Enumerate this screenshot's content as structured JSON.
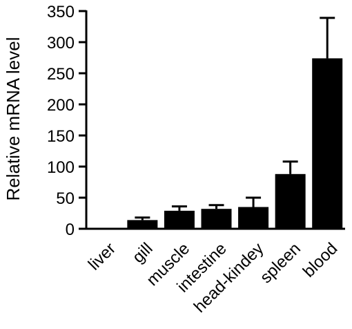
{
  "chart_data": {
    "type": "bar",
    "title": "",
    "xlabel": "",
    "ylabel": "Relative mRNA level",
    "categories": [
      "liver",
      "gill",
      "muscle",
      "intestine",
      "head-kindey",
      "spleen",
      "blood"
    ],
    "values": [
      1,
      14,
      29,
      32,
      35,
      88,
      274
    ],
    "error_upper": [
      0,
      4,
      7,
      6,
      15,
      20,
      65
    ],
    "ylim": [
      0,
      350
    ],
    "yticks": [
      0,
      50,
      100,
      150,
      200,
      250,
      300,
      350
    ],
    "grid": false,
    "legend": "none",
    "bar_color": "#000000"
  }
}
